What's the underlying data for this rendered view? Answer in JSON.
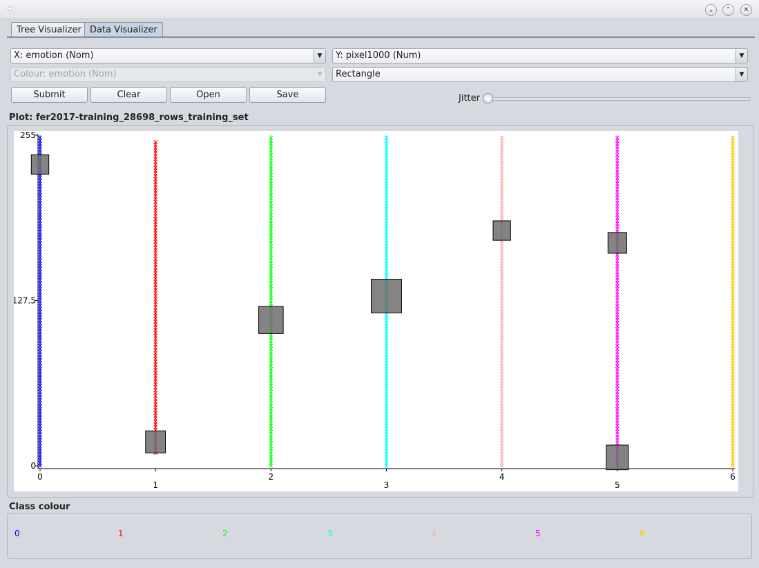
{
  "window": {
    "title": ""
  },
  "tabs": [
    {
      "label": "Tree Visualizer",
      "active": false
    },
    {
      "label": "Data Visualizer",
      "active": true
    }
  ],
  "controls": {
    "x_axis": "X: emotion (Nom)",
    "y_axis": "Y: pixel1000 (Num)",
    "colour": "Colour: emotion (Nom)",
    "shape": "Rectangle",
    "submit_label": "Submit",
    "clear_label": "Clear",
    "open_label": "Open",
    "save_label": "Save",
    "jitter_label": "Jitter",
    "jitter_value": 0
  },
  "plot": {
    "title": "Plot: fer2017-training_28698_rows_training_set"
  },
  "chart_data": {
    "type": "scatter",
    "marker": "x",
    "xlabel": "",
    "ylabel": "",
    "x_ticks": [
      "0",
      "1",
      "2",
      "3",
      "4",
      "5",
      "6"
    ],
    "y_ticks": [
      "255",
      "127.5",
      "0"
    ],
    "ylim": [
      0,
      255
    ],
    "series": [
      {
        "x": 0,
        "values": [
          0,
          255
        ],
        "color": "#0000ff"
      },
      {
        "x": 1,
        "values": [
          10,
          250
        ],
        "color": "#ff0000"
      },
      {
        "x": 2,
        "values": [
          0,
          255
        ],
        "color": "#00ff00"
      },
      {
        "x": 3,
        "values": [
          0,
          255
        ],
        "color": "#00ffff"
      },
      {
        "x": 4,
        "values": [
          0,
          255
        ],
        "color": "#ffafaf"
      },
      {
        "x": 5,
        "values": [
          0,
          255
        ],
        "color": "#ff00ff"
      },
      {
        "x": 6,
        "values": [
          0,
          255
        ],
        "color": "#ffc800"
      }
    ],
    "rectangles": [
      {
        "x": 0,
        "y0": 225,
        "y1": 240
      },
      {
        "x": 1,
        "y0": 10,
        "y1": 27
      },
      {
        "x": 2,
        "y0": 102,
        "y1": 123
      },
      {
        "x": 3,
        "y0": 118,
        "y1": 144
      },
      {
        "x": 4,
        "y0": 174,
        "y1": 189
      },
      {
        "x": 5,
        "y0": 164,
        "y1": 180
      },
      {
        "x": 5,
        "y0": -3,
        "y1": 16
      }
    ]
  },
  "legend": {
    "title": "Class colour",
    "items": [
      {
        "label": "0",
        "color": "#0000ff"
      },
      {
        "label": "1",
        "color": "#ff0000"
      },
      {
        "label": "2",
        "color": "#00ff00"
      },
      {
        "label": "3",
        "color": "#00ffff"
      },
      {
        "label": "4",
        "color": "#ffafaf"
      },
      {
        "label": "5",
        "color": "#ff00ff"
      },
      {
        "label": "6",
        "color": "#ffc800"
      }
    ]
  }
}
